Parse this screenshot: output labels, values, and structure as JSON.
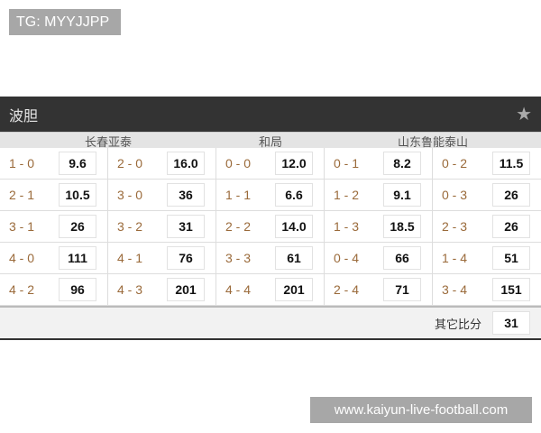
{
  "watermark_top": "TG: MYYJJPP",
  "watermark_bottom": "www.kaiyun-live-football.com",
  "panel": {
    "title": "波胆",
    "star_icon": "star-icon",
    "groups": [
      "长春亚泰",
      "和局",
      "山东鲁能泰山"
    ],
    "rows": [
      [
        [
          "1 - 0",
          "9.6"
        ],
        [
          "2 - 0",
          "16.0"
        ],
        [
          "0 - 0",
          "12.0"
        ],
        [
          "0 - 1",
          "8.2"
        ],
        [
          "0 - 2",
          "11.5"
        ]
      ],
      [
        [
          "2 - 1",
          "10.5"
        ],
        [
          "3 - 0",
          "36"
        ],
        [
          "1 - 1",
          "6.6"
        ],
        [
          "1 - 2",
          "9.1"
        ],
        [
          "0 - 3",
          "26"
        ]
      ],
      [
        [
          "3 - 1",
          "26"
        ],
        [
          "3 - 2",
          "31"
        ],
        [
          "2 - 2",
          "14.0"
        ],
        [
          "1 - 3",
          "18.5"
        ],
        [
          "2 - 3",
          "26"
        ]
      ],
      [
        [
          "4 - 0",
          "111"
        ],
        [
          "4 - 1",
          "76"
        ],
        [
          "3 - 3",
          "61"
        ],
        [
          "0 - 4",
          "66"
        ],
        [
          "1 - 4",
          "51"
        ]
      ],
      [
        [
          "4 - 2",
          "96"
        ],
        [
          "4 - 3",
          "201"
        ],
        [
          "4 - 4",
          "201"
        ],
        [
          "2 - 4",
          "71"
        ],
        [
          "3 - 4",
          "151"
        ]
      ]
    ],
    "other_label": "其它比分",
    "other_value": "31"
  }
}
